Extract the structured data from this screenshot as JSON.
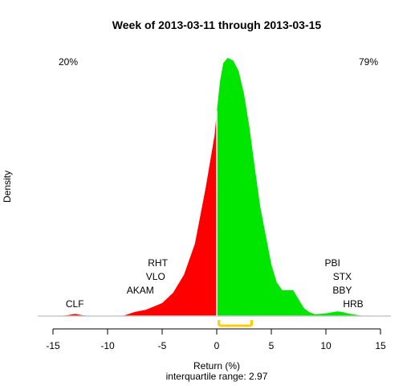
{
  "chart_data": {
    "type": "area",
    "title": "Week of 2013-03-11 through 2013-03-15",
    "xlabel": "Return (%)",
    "subtitle": "interquartile range: 2.97",
    "ylabel": "Density",
    "xlim": [
      -15.5,
      15
    ],
    "x_ticks": [
      -15,
      -10,
      -5,
      0,
      5,
      10,
      15
    ],
    "x_tick_labels": [
      "-15",
      "-10",
      "-5",
      "0",
      "5",
      "10",
      "15"
    ],
    "negative_share": "20%",
    "positive_share": "79%",
    "colors": {
      "negative": "#ff0000",
      "positive": "#00e600",
      "iqr": "#ffcc00",
      "baseline": "#c8c8c8"
    },
    "iqr": [
      0.2,
      3.2
    ],
    "density": {
      "x": [
        -14.5,
        -13.7,
        -13.0,
        -12.3,
        -11.5,
        -10.0,
        -8.5,
        -7.5,
        -6.5,
        -5.0,
        -4.0,
        -3.0,
        -2.0,
        -1.0,
        -0.2,
        0.0,
        0.3,
        0.6,
        1.0,
        1.5,
        2.0,
        2.5,
        3.0,
        3.5,
        4.0,
        5.0,
        5.5,
        6.0,
        6.5,
        7.0,
        7.5,
        8.0,
        8.5,
        9.0,
        10.0,
        11.0,
        11.5,
        12.0,
        13.0,
        13.7
      ],
      "y": [
        0.0,
        0.003,
        0.008,
        0.003,
        0.0,
        0.0,
        0.002,
        0.016,
        0.024,
        0.05,
        0.09,
        0.16,
        0.28,
        0.5,
        0.7,
        0.79,
        0.91,
        0.98,
        1.0,
        0.99,
        0.95,
        0.86,
        0.73,
        0.57,
        0.42,
        0.2,
        0.13,
        0.1,
        0.1,
        0.1,
        0.065,
        0.03,
        0.015,
        0.007,
        0.01,
        0.018,
        0.016,
        0.01,
        0.003,
        0.0
      ]
    },
    "annotations": [
      {
        "label": "CLF",
        "x": -13.0
      },
      {
        "label": "AKAM",
        "x": -7.0
      },
      {
        "label": "VLO",
        "x": -5.6
      },
      {
        "label": "RHT",
        "x": -5.4
      },
      {
        "label": "PBI",
        "x": 10.6
      },
      {
        "label": "STX",
        "x": 11.5
      },
      {
        "label": "BBY",
        "x": 11.5
      },
      {
        "label": "HRB",
        "x": 12.5
      }
    ]
  }
}
